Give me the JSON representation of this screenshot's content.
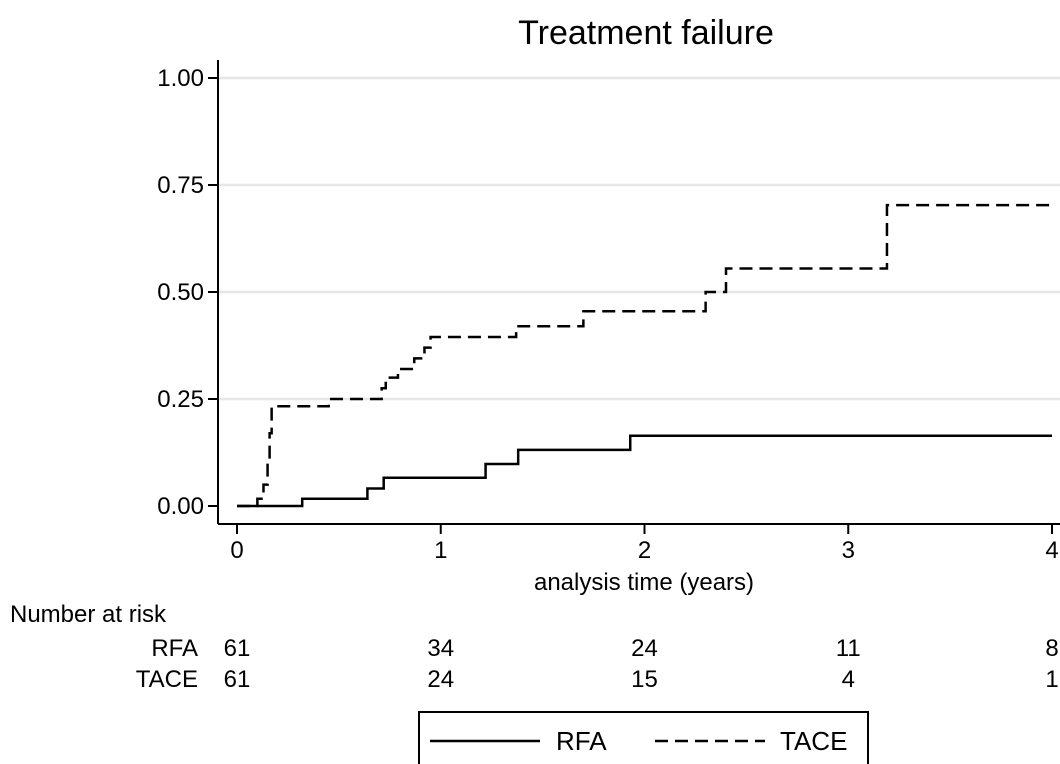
{
  "chart_data": {
    "type": "line",
    "title": "Treatment failure",
    "xlabel": "analysis time (years)",
    "ylabel": "",
    "xlim": [
      0,
      4
    ],
    "ylim": [
      0,
      1
    ],
    "x_ticks": [
      "0",
      "1",
      "2",
      "3",
      "4"
    ],
    "y_ticks": [
      "0.00",
      "0.25",
      "0.50",
      "0.75",
      "1.00"
    ],
    "grid": true,
    "step": true,
    "legend_position": "bottom",
    "series": [
      {
        "name": "RFA",
        "line_style": "solid",
        "x": [
          0,
          0.32,
          0.64,
          0.72,
          1.22,
          1.38,
          1.93,
          4.0
        ],
        "y": [
          0,
          0.017,
          0.041,
          0.066,
          0.098,
          0.131,
          0.164,
          0.164
        ]
      },
      {
        "name": "TACE",
        "line_style": "dashed",
        "x": [
          0,
          0.1,
          0.13,
          0.15,
          0.16,
          0.17,
          0.45,
          0.71,
          0.73,
          0.79,
          0.87,
          0.92,
          0.95,
          1.37,
          1.7,
          2.3,
          2.4,
          3.19,
          4.0
        ],
        "y": [
          0,
          0.017,
          0.05,
          0.1,
          0.17,
          0.233,
          0.25,
          0.275,
          0.3,
          0.32,
          0.345,
          0.37,
          0.395,
          0.42,
          0.455,
          0.5,
          0.555,
          0.703,
          0.703
        ]
      }
    ],
    "risk_table": {
      "header": "Number at risk",
      "times": [
        0,
        1,
        2,
        3,
        4
      ],
      "rows": [
        {
          "label": "RFA",
          "values": [
            "61",
            "34",
            "24",
            "11",
            "8"
          ]
        },
        {
          "label": "TACE",
          "values": [
            "61",
            "24",
            "15",
            "4",
            "1"
          ]
        }
      ]
    }
  }
}
